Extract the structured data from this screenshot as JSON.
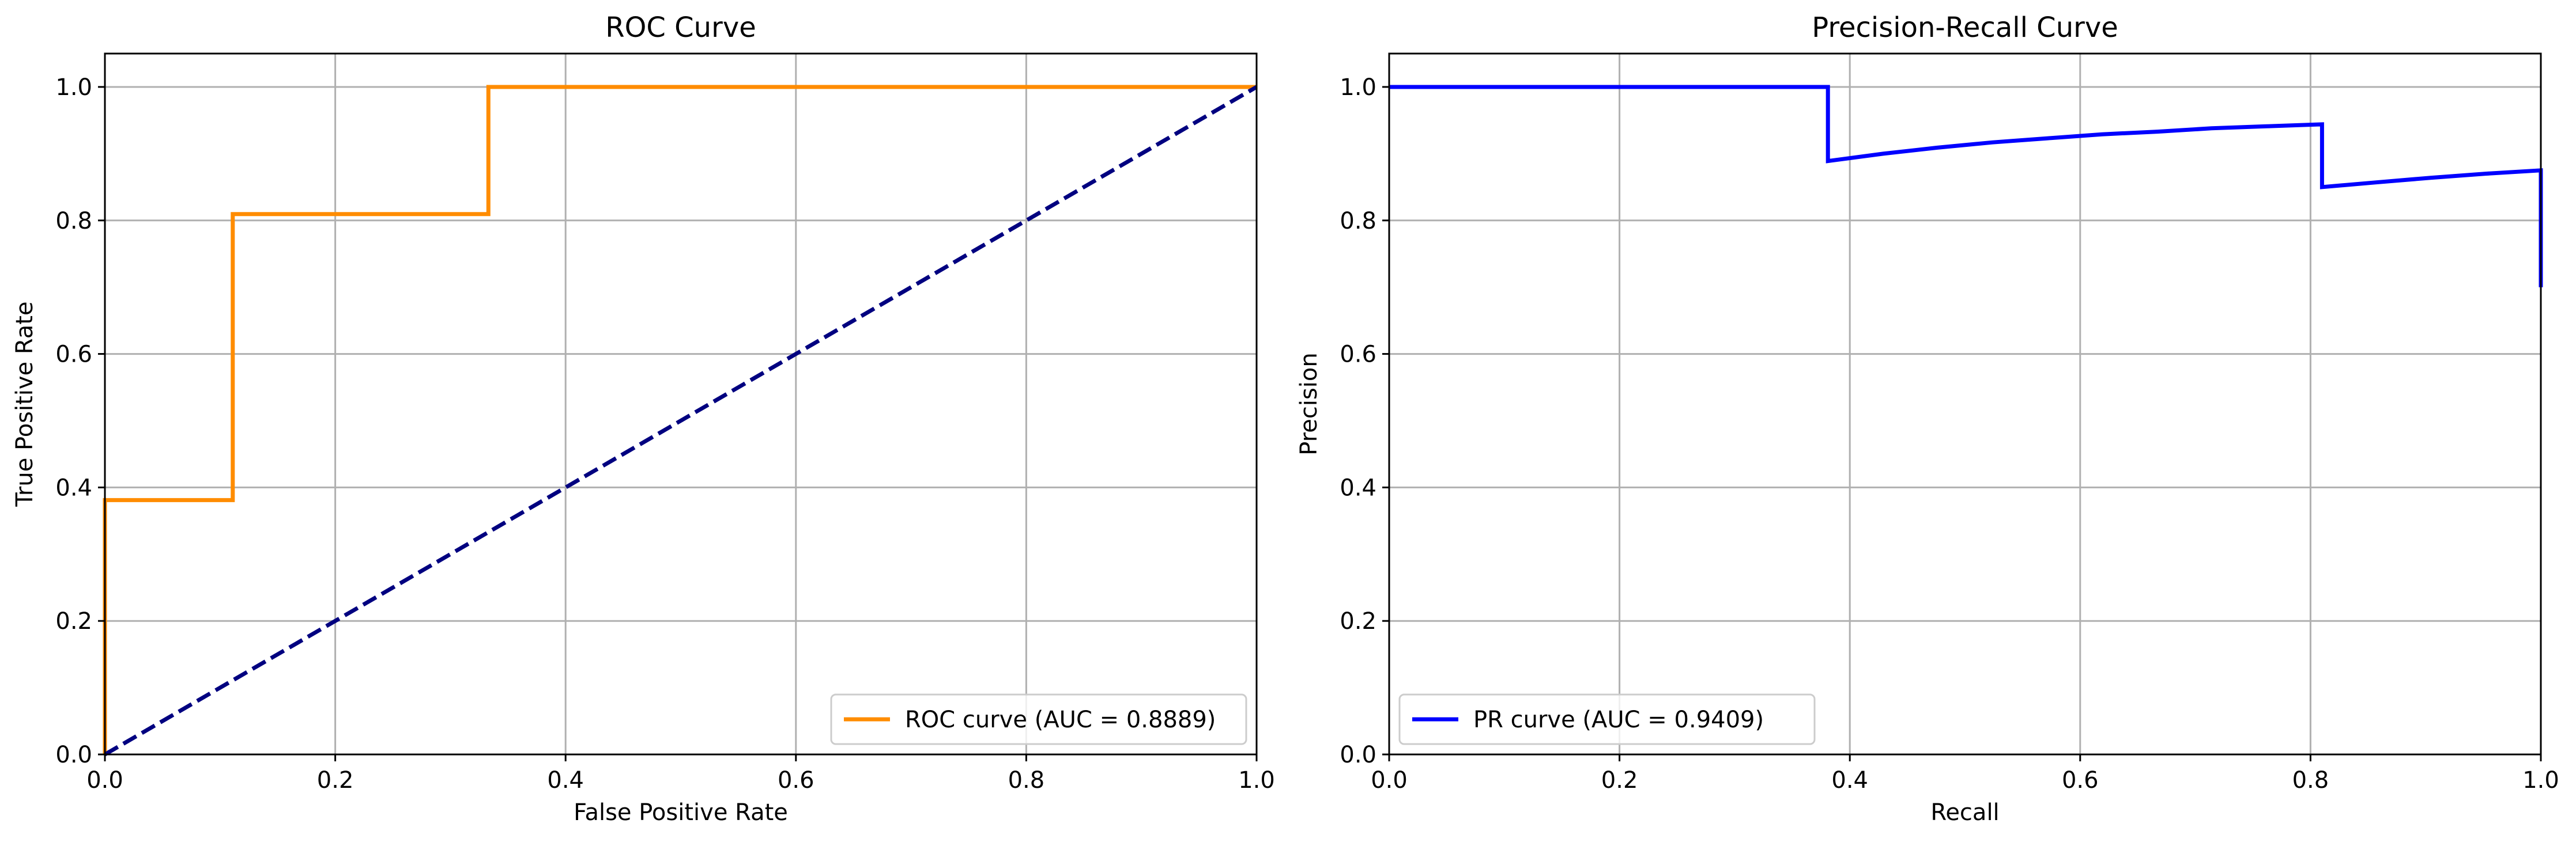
{
  "chart_data": [
    {
      "type": "line",
      "title": "ROC Curve",
      "xlabel": "False Positive Rate",
      "ylabel": "True Positive Rate",
      "xlim": [
        0.0,
        1.0
      ],
      "ylim": [
        0.0,
        1.05
      ],
      "xticks": [
        "0.0",
        "0.2",
        "0.4",
        "0.6",
        "0.8",
        "1.0"
      ],
      "yticks": [
        "0.0",
        "0.2",
        "0.4",
        "0.6",
        "0.8",
        "1.0"
      ],
      "grid": true,
      "legend_position": "lower-right",
      "series": [
        {
          "name": "ROC curve (AUC = 0.8889)",
          "color": "#ff8c00",
          "style": "solid",
          "x": [
            0.0,
            0.0,
            0.0,
            0.111,
            0.111,
            0.333,
            0.333,
            1.0
          ],
          "y": [
            0.0,
            0.0476,
            0.381,
            0.381,
            0.8095,
            0.8095,
            1.0,
            1.0
          ]
        },
        {
          "color": "#000080",
          "style": "dashed",
          "x": [
            0.0,
            1.0
          ],
          "y": [
            0.0,
            1.0
          ]
        }
      ]
    },
    {
      "type": "line",
      "title": "Precision-Recall Curve",
      "xlabel": "Recall",
      "ylabel": "Precision",
      "xlim": [
        0.0,
        1.0
      ],
      "ylim": [
        0.0,
        1.05
      ],
      "xticks": [
        "0.0",
        "0.2",
        "0.4",
        "0.6",
        "0.8",
        "1.0"
      ],
      "yticks": [
        "0.0",
        "0.2",
        "0.4",
        "0.6",
        "0.8",
        "1.0"
      ],
      "grid": true,
      "legend_position": "lower-left",
      "series": [
        {
          "name": "PR curve (AUC = 0.9409)",
          "color": "#0000ff",
          "style": "solid",
          "x": [
            0.0,
            0.381,
            0.381,
            0.429,
            0.476,
            0.524,
            0.571,
            0.619,
            0.667,
            0.714,
            0.762,
            0.81,
            0.81,
            0.857,
            0.905,
            0.952,
            1.0,
            1.0
          ],
          "y": [
            1.0,
            1.0,
            0.889,
            0.9,
            0.909,
            0.917,
            0.923,
            0.929,
            0.933,
            0.938,
            0.941,
            0.944,
            0.85,
            0.857,
            0.864,
            0.87,
            0.875,
            0.7
          ]
        }
      ]
    }
  ]
}
